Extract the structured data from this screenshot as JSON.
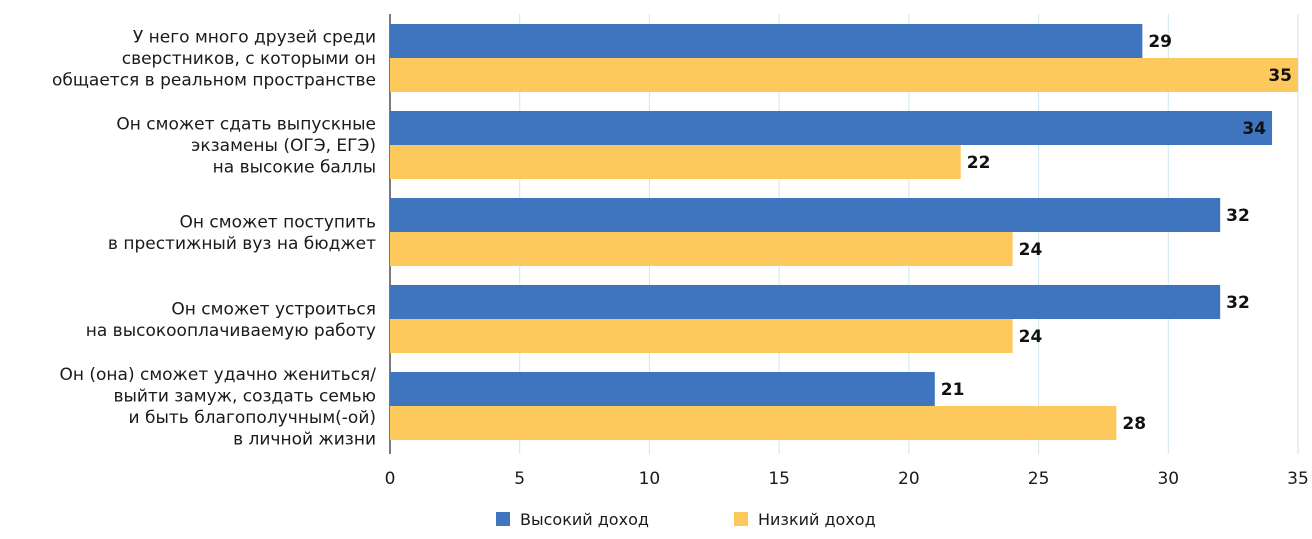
{
  "chart_data": {
    "type": "bar",
    "orientation": "horizontal",
    "title": "",
    "xlabel": "",
    "ylabel": "",
    "xlim": [
      0,
      35
    ],
    "x_ticks": [
      0,
      5,
      10,
      15,
      20,
      25,
      30,
      35
    ],
    "grid": "vertical",
    "legend_position": "bottom",
    "categories": [
      [
        "У него много друзей среди",
        "сверстников, с которыми он",
        "общается в реальном пространстве"
      ],
      [
        "Он сможет сдать выпускные",
        "экзамены (ОГЭ, ЕГЭ)",
        "на высокие баллы"
      ],
      [
        "Он сможет поступить",
        "в престижный вуз на бюджет"
      ],
      [
        "Он сможет устроиться",
        "на высокооплачиваемую работу"
      ],
      [
        "Он (она) сможет удачно жениться/",
        "выйти замуж, создать семью",
        "и быть благополучным(-ой)",
        "в личной жизни"
      ]
    ],
    "series": [
      {
        "name": "Высокий доход",
        "color": "#3f75bf",
        "values": [
          29,
          34,
          32,
          32,
          21
        ]
      },
      {
        "name": "Низкий доход",
        "color": "#fdc85c",
        "values": [
          35,
          22,
          24,
          24,
          28
        ]
      }
    ]
  }
}
